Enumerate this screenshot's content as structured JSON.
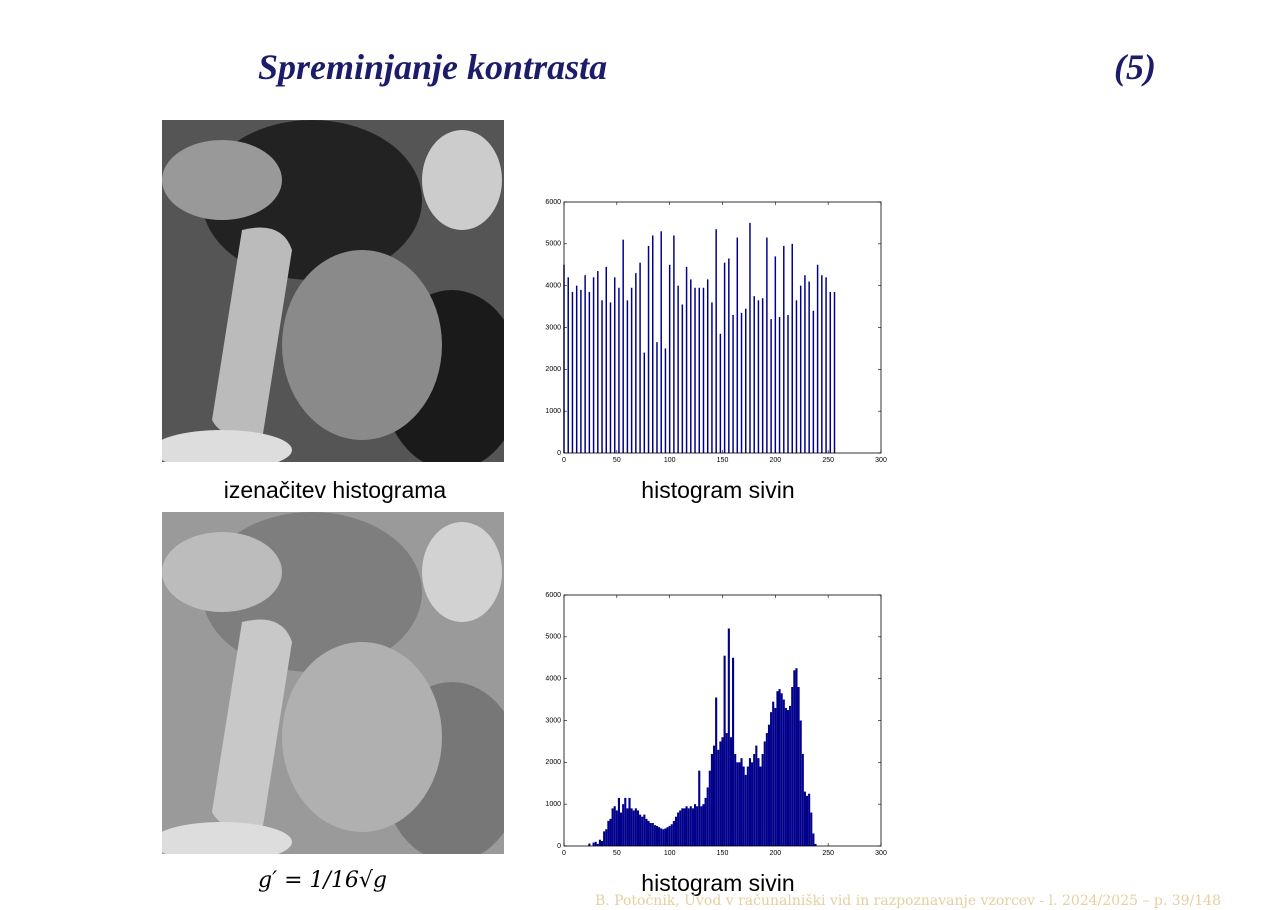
{
  "header": {
    "title": "Spreminjanje kontrasta",
    "number": "(5)"
  },
  "figures": [
    {
      "caption": "izenačitev histograma"
    },
    {
      "caption": "g′ = 1/16√g"
    }
  ],
  "footer": "B. Potočnik, Uvod v računalniški vid in razpoznavanje vzorcev - l. 2024/2025 – p. 39/148",
  "chart_data": [
    {
      "type": "bar",
      "caption": "histogram sivin",
      "color": "#00008b",
      "x": [
        0,
        4,
        8,
        12,
        16,
        20,
        24,
        28,
        32,
        36,
        40,
        44,
        48,
        52,
        56,
        60,
        64,
        68,
        72,
        76,
        80,
        84,
        88,
        92,
        96,
        100,
        104,
        108,
        112,
        116,
        120,
        124,
        128,
        132,
        136,
        140,
        144,
        148,
        152,
        156,
        160,
        164,
        168,
        172,
        176,
        180,
        184,
        188,
        192,
        196,
        200,
        204,
        208,
        212,
        216,
        220,
        224,
        228,
        232,
        236,
        240,
        244,
        248,
        252,
        256
      ],
      "values": [
        4500,
        4200,
        3850,
        4000,
        3900,
        4250,
        3850,
        4200,
        4350,
        3650,
        4450,
        3600,
        4200,
        3950,
        5100,
        3650,
        3950,
        4300,
        4550,
        2400,
        4950,
        5200,
        2650,
        5300,
        2500,
        4500,
        5200,
        4000,
        3550,
        4450,
        4150,
        3950,
        3950,
        3950,
        4150,
        3600,
        5350,
        2850,
        4550,
        4650,
        3300,
        5150,
        3350,
        3450,
        5500,
        3750,
        3650,
        3700,
        5150,
        3200,
        4700,
        3250,
        4950,
        3300,
        5000,
        3650,
        4000,
        4250,
        4100,
        3400,
        4500,
        4250,
        4200,
        3850,
        3850
      ],
      "xlim": [
        0,
        300
      ],
      "ylim": [
        0,
        6000
      ],
      "xticks": [
        0,
        50,
        100,
        150,
        200,
        250,
        300
      ],
      "yticks": [
        0,
        1000,
        2000,
        3000,
        4000,
        5000,
        6000
      ]
    },
    {
      "type": "bar",
      "caption": "histogram sivin",
      "color": "#00008b",
      "x": [
        24,
        26,
        28,
        30,
        32,
        34,
        36,
        38,
        40,
        42,
        44,
        46,
        48,
        50,
        52,
        54,
        56,
        58,
        60,
        62,
        64,
        66,
        68,
        70,
        72,
        74,
        76,
        78,
        80,
        82,
        84,
        86,
        88,
        90,
        92,
        94,
        96,
        98,
        100,
        102,
        104,
        106,
        108,
        110,
        112,
        114,
        116,
        118,
        120,
        122,
        124,
        126,
        128,
        130,
        132,
        134,
        136,
        138,
        140,
        142,
        144,
        146,
        148,
        150,
        152,
        154,
        156,
        158,
        160,
        162,
        164,
        166,
        168,
        170,
        172,
        174,
        176,
        178,
        180,
        182,
        184,
        186,
        188,
        190,
        192,
        194,
        196,
        198,
        200,
        202,
        204,
        206,
        208,
        210,
        212,
        214,
        216,
        218,
        220,
        222,
        224,
        226,
        228,
        230,
        232,
        234,
        236,
        238
      ],
      "values": [
        60,
        0,
        80,
        100,
        50,
        150,
        120,
        350,
        400,
        600,
        650,
        900,
        950,
        850,
        1150,
        800,
        1000,
        1150,
        900,
        1150,
        900,
        850,
        900,
        850,
        750,
        700,
        750,
        650,
        600,
        550,
        550,
        500,
        480,
        450,
        420,
        400,
        420,
        450,
        480,
        520,
        600,
        700,
        800,
        850,
        900,
        900,
        950,
        900,
        950,
        900,
        1000,
        950,
        1800,
        950,
        1000,
        1150,
        1400,
        1800,
        2200,
        2400,
        3550,
        2300,
        2500,
        2600,
        4550,
        2700,
        5200,
        2600,
        4500,
        2200,
        2000,
        2000,
        2100,
        1900,
        1700,
        1900,
        2100,
        2000,
        2200,
        2400,
        2100,
        1900,
        2200,
        2500,
        2700,
        2900,
        3200,
        3450,
        3300,
        3700,
        3750,
        3650,
        3500,
        3300,
        3250,
        3350,
        3800,
        4200,
        4250,
        3800,
        3000,
        2200,
        1300,
        1200,
        1250,
        800,
        300,
        50
      ],
      "xlim": [
        0,
        300
      ],
      "ylim": [
        0,
        6000
      ],
      "xticks": [
        0,
        50,
        100,
        150,
        200,
        250,
        300
      ],
      "yticks": [
        0,
        1000,
        2000,
        3000,
        4000,
        5000,
        6000
      ]
    }
  ]
}
